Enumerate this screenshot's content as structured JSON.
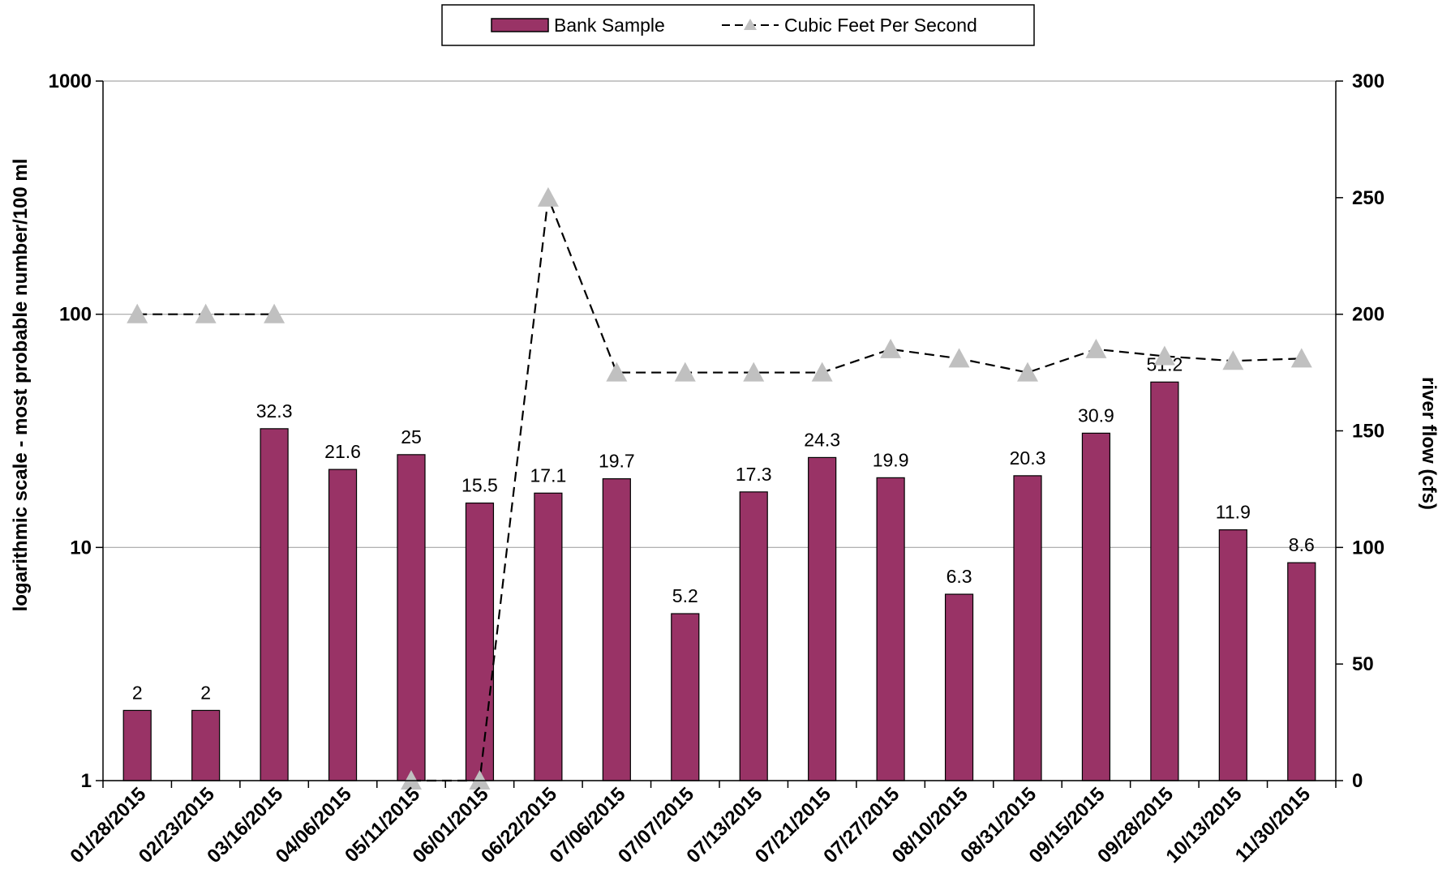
{
  "chart_data": {
    "type": "bar",
    "categories": [
      "01/28/2015",
      "02/23/2015",
      "03/16/2015",
      "04/06/2015",
      "05/11/2015",
      "06/01/2015",
      "06/22/2015",
      "07/06/2015",
      "07/07/2015",
      "07/13/2015",
      "07/21/2015",
      "07/27/2015",
      "08/10/2015",
      "08/31/2015",
      "09/15/2015",
      "09/28/2015",
      "10/13/2015",
      "11/30/2015"
    ],
    "series": [
      {
        "name": "Bank Sample",
        "type": "bar",
        "axis": "left",
        "color": "#993366",
        "values": [
          2,
          2,
          32.3,
          21.6,
          25,
          15.5,
          17.1,
          19.7,
          5.2,
          17.3,
          24.3,
          19.9,
          6.3,
          20.3,
          30.9,
          51.2,
          11.9,
          8.6
        ],
        "labels": [
          "2",
          "2",
          "32.3",
          "21.6",
          "25",
          "15.5",
          "17.1",
          "19.7",
          "5.2",
          "17.3",
          "24.3",
          "19.9",
          "6.3",
          "20.3",
          "30.9",
          "51.2",
          "11.9",
          "8.6"
        ]
      },
      {
        "name": "Cubic Feet Per Second",
        "type": "line",
        "axis": "right",
        "line_style": "dashed",
        "line_color": "#000000",
        "marker": "triangle",
        "marker_color": "#c0c0c0",
        "values": [
          200,
          200,
          200,
          null,
          0,
          0,
          250,
          175,
          175,
          175,
          175,
          185,
          181,
          175,
          185,
          182,
          180,
          181
        ]
      }
    ],
    "y_left": {
      "label": "logarithmic scale - most probable number/100 ml",
      "scale": "log",
      "ylim": [
        1,
        1000
      ],
      "ticks": [
        "1",
        "10",
        "100",
        "1000"
      ]
    },
    "y_right": {
      "label": "river flow (cfs)",
      "scale": "linear",
      "ylim": [
        0,
        300
      ],
      "ticks": [
        "0",
        "50",
        "100",
        "150",
        "200",
        "250",
        "300"
      ]
    },
    "grid": "horizontal-major",
    "legend_position": "top-center"
  }
}
